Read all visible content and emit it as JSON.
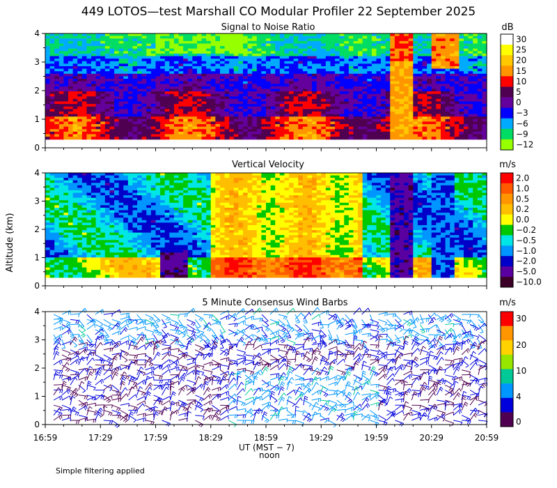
{
  "title": "449 LOTOS—test Marshall CO Modular Profiler 22 September 2025",
  "ylabel": "Altitude (km)",
  "xlabel": "UT  (MST − 7)",
  "noon_label": "noon",
  "footer_note": "Simple filtering applied",
  "x_ticks": [
    "16:59",
    "17:29",
    "17:59",
    "18:29",
    "18:59",
    "19:29",
    "19:59",
    "20:29",
    "20:59"
  ],
  "chart_data": [
    {
      "type": "heatmap",
      "title": "Signal to Noise Ratio",
      "units": "dB",
      "ylim": [
        0,
        4
      ],
      "y_ticks": [
        "0",
        "1",
        "2",
        "3",
        "4"
      ],
      "colorbar_labels": [
        "30",
        "25",
        "20",
        "15",
        "10",
        "5",
        "0",
        "−3",
        "−6",
        "−9",
        "−12"
      ],
      "colorbar_colors": [
        "#ffffff",
        "#ffff00",
        "#ffc800",
        "#ff9600",
        "#ff0000",
        "#500050",
        "#64009b",
        "#0000ff",
        "#00aaff",
        "#00dc64",
        "#96ff00"
      ]
    },
    {
      "type": "heatmap",
      "title": "Vertical Velocity",
      "units": "m/s",
      "ylim": [
        0,
        4
      ],
      "y_ticks": [
        "0",
        "1",
        "2",
        "3",
        "4"
      ],
      "colorbar_labels": [
        "2.0",
        "1.0",
        "0.5",
        "0.2",
        "0.0",
        "−0.2",
        "−0.5",
        "−1.0",
        "−2.0",
        "−5.0",
        "−10.0"
      ],
      "colorbar_colors": [
        "#ff0000",
        "#ff5a00",
        "#ff9600",
        "#ffbe00",
        "#ffff00",
        "#00c800",
        "#00e6e6",
        "#0096ff",
        "#0000c8",
        "#5a00a0",
        "#3c0028"
      ]
    },
    {
      "type": "barbs",
      "title": "5 Minute Consensus Wind Barbs",
      "units": "m/s",
      "ylim": [
        0,
        4
      ],
      "y_ticks": [
        "0",
        "1",
        "2",
        "3",
        "4"
      ],
      "colorbar_labels": [
        "30",
        "20",
        "10",
        "4",
        "0"
      ],
      "colorbar_colors": [
        "#ff0000",
        "#ff9600",
        "#ffd200",
        "#96e600",
        "#00c896",
        "#0096ff",
        "#0000dc",
        "#500050"
      ]
    }
  ]
}
